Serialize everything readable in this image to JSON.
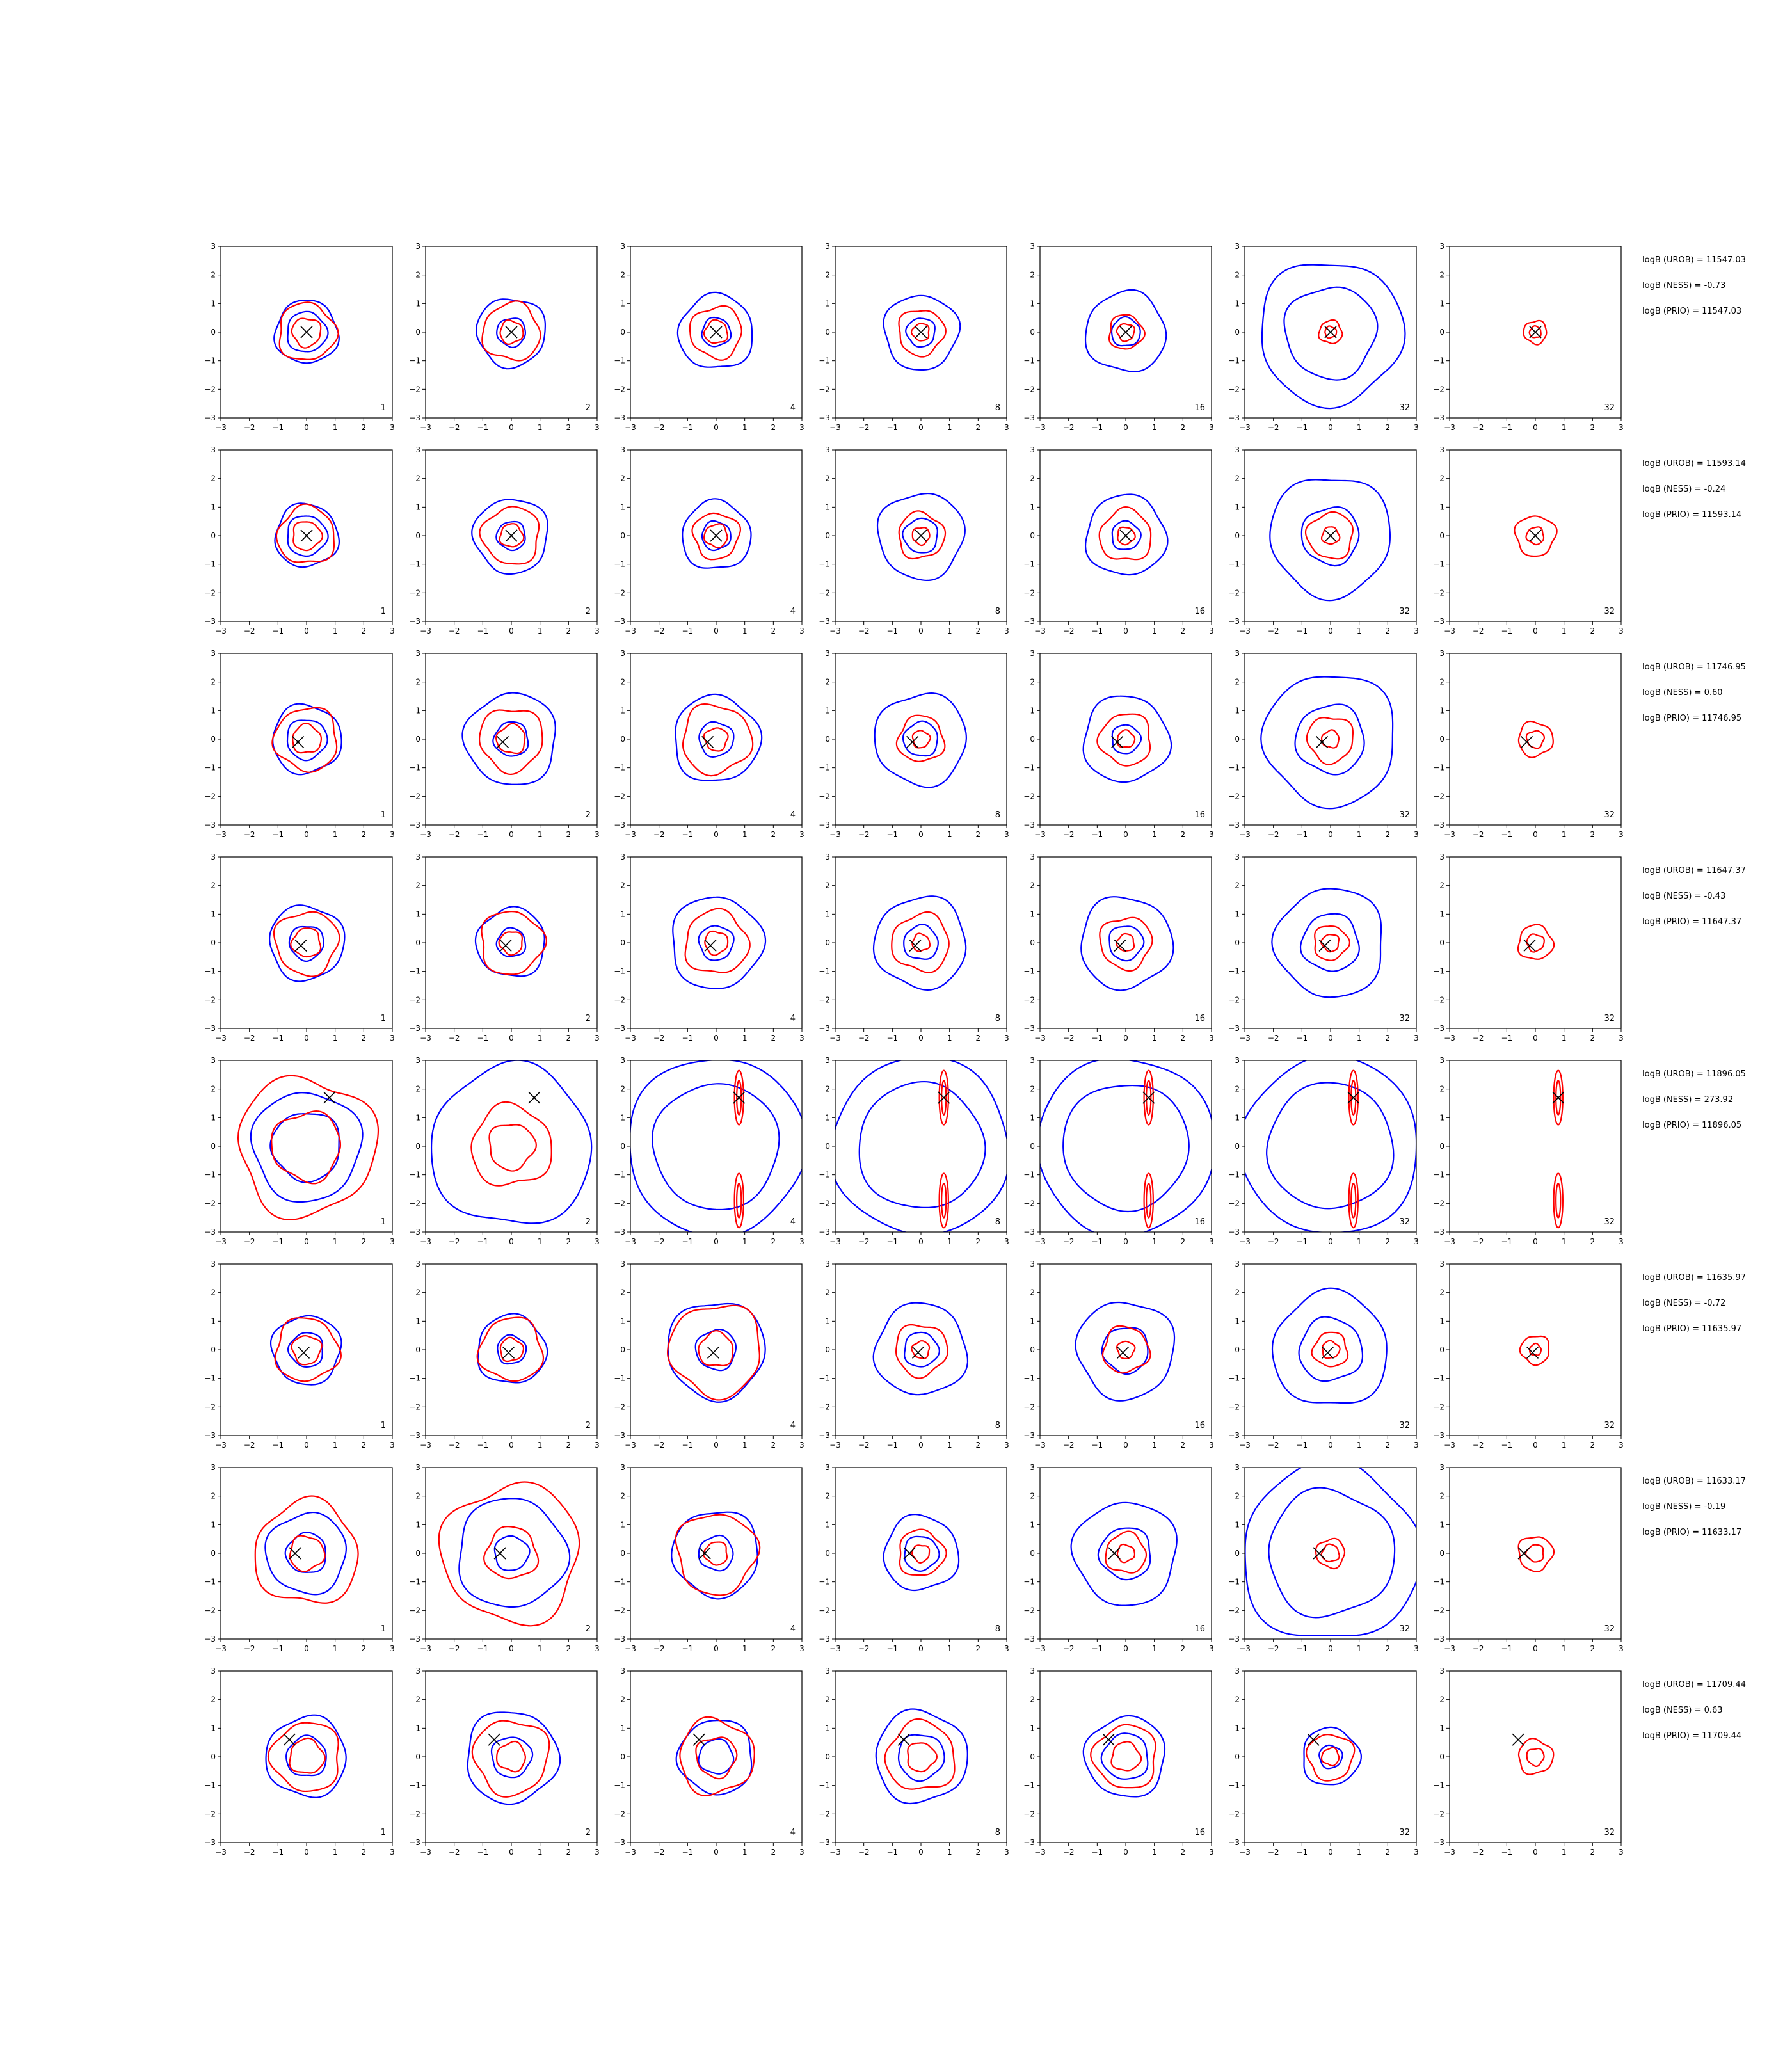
{
  "chart_data": {
    "type": "contour-grid",
    "title": "",
    "xlim": [
      -3,
      3
    ],
    "ylim": [
      -3,
      3
    ],
    "ticks": [
      "−3",
      "−2",
      "−1",
      "0",
      "1",
      "2",
      "3"
    ],
    "grid": false,
    "series_colors": {
      "outer": "#0000ff",
      "inner": "#ff0000",
      "marker": "#000000"
    },
    "columns": [
      {
        "label": "1"
      },
      {
        "label": "2"
      },
      {
        "label": "4"
      },
      {
        "label": "8"
      },
      {
        "label": "16"
      },
      {
        "label": "32"
      },
      {
        "label": "32"
      }
    ],
    "rows": [
      {
        "truth": [
          0,
          0
        ],
        "annotations": [
          "logB (UROB) = 11547.03",
          "logB (NESS) = -0.73",
          "logB (PRIO) = 11547.03"
        ],
        "panels": [
          {
            "blue": [
              1.1,
              0.7
            ],
            "red": [
              1.0,
              0.5
            ]
          },
          {
            "blue": [
              1.2,
              0.5
            ],
            "red": [
              1.0,
              0.4
            ]
          },
          {
            "blue": [
              1.3,
              0.5
            ],
            "red": [
              0.9,
              0.4
            ]
          },
          {
            "blue": [
              1.3,
              0.5
            ],
            "red": [
              0.8,
              0.3
            ]
          },
          {
            "blue": [
              1.4,
              0.5
            ],
            "red": [
              0.6,
              0.3
            ]
          },
          {
            "blue": [
              2.5,
              1.6
            ],
            "red": [
              0.4,
              0.2
            ]
          },
          {
            "blue": [],
            "red": [
              0.4,
              0.2
            ]
          }
        ]
      },
      {
        "truth": [
          0,
          0
        ],
        "annotations": [
          "logB (UROB) = 11593.14",
          "logB (NESS) = -0.24",
          "logB (PRIO) = 11593.14"
        ],
        "panels": [
          {
            "blue": [
              1.1,
              0.7
            ],
            "red": [
              1.0,
              0.5
            ]
          },
          {
            "blue": [
              1.3,
              0.5
            ],
            "red": [
              1.0,
              0.4
            ]
          },
          {
            "blue": [
              1.2,
              0.5
            ],
            "red": [
              0.8,
              0.4
            ]
          },
          {
            "blue": [
              1.5,
              0.6
            ],
            "red": [
              0.8,
              0.3
            ]
          },
          {
            "blue": [
              1.4,
              0.5
            ],
            "red": [
              0.9,
              0.3
            ]
          },
          {
            "blue": [
              2.1,
              1.0
            ],
            "red": [
              0.8,
              0.3
            ]
          },
          {
            "blue": [],
            "red": [
              0.7,
              0.3
            ]
          }
        ]
      },
      {
        "truth": [
          -0.3,
          -0.1
        ],
        "annotations": [
          "logB (UROB) = 11746.95",
          "logB (NESS) = 0.60",
          "logB (PRIO) = 11746.95"
        ],
        "panels": [
          {
            "blue": [
              1.2,
              0.7
            ],
            "red": [
              1.1,
              0.5
            ]
          },
          {
            "blue": [
              1.6,
              0.6
            ],
            "red": [
              1.1,
              0.5
            ]
          },
          {
            "blue": [
              1.5,
              0.6
            ],
            "red": [
              1.2,
              0.4
            ]
          },
          {
            "blue": [
              1.6,
              0.6
            ],
            "red": [
              0.8,
              0.3
            ]
          },
          {
            "blue": [
              1.5,
              0.5
            ],
            "red": [
              0.9,
              0.3
            ]
          },
          {
            "blue": [
              2.3,
              1.2
            ],
            "red": [
              0.8,
              0.3
            ]
          },
          {
            "blue": [],
            "red": [
              0.6,
              0.3
            ]
          }
        ]
      },
      {
        "truth": [
          -0.2,
          -0.1
        ],
        "annotations": [
          "logB (UROB) = 11647.37",
          "logB (NESS) = -0.43",
          "logB (PRIO) = 11647.37"
        ],
        "panels": [
          {
            "blue": [
              1.3,
              0.6
            ],
            "red": [
              1.1,
              0.5
            ]
          },
          {
            "blue": [
              1.2,
              0.5
            ],
            "red": [
              1.1,
              0.4
            ]
          },
          {
            "blue": [
              1.6,
              0.6
            ],
            "red": [
              1.1,
              0.4
            ]
          },
          {
            "blue": [
              1.6,
              0.6
            ],
            "red": [
              1.0,
              0.3
            ]
          },
          {
            "blue": [
              1.6,
              0.6
            ],
            "red": [
              0.9,
              0.3
            ]
          },
          {
            "blue": [
              1.9,
              1.0
            ],
            "red": [
              0.6,
              0.3
            ]
          },
          {
            "blue": [],
            "red": [
              0.6,
              0.3
            ]
          }
        ]
      },
      {
        "truth": [
          0.8,
          1.7
        ],
        "annotations": [
          "logB (UROB) = 11896.05",
          "logB (NESS) = 273.92",
          "logB (PRIO) = 11896.05"
        ],
        "panels": [
          {
            "blue": [
              1.9,
              1.2
            ],
            "red": [
              2.4,
              1.2
            ]
          },
          {
            "blue": [
              2.8
            ],
            "red": [
              1.4,
              0.8
            ]
          },
          {
            "blue": [
              3.1,
              2.2
            ],
            "red": [
              0.3,
              0.2
            ]
          },
          {
            "blue": [
              3.1,
              2.2
            ],
            "red": [
              0.3,
              0.2
            ]
          },
          {
            "blue": [
              3.1,
              2.2
            ],
            "red": [
              0.3,
              0.2
            ]
          },
          {
            "blue": [
              3.1,
              2.2
            ],
            "red": [
              0.3,
              0.2
            ]
          },
          {
            "blue": [],
            "red": [
              0.3,
              0.2
            ]
          }
        ]
      },
      {
        "truth": [
          -0.1,
          -0.1
        ],
        "annotations": [
          "logB (UROB) = 11635.97",
          "logB (NESS) = -0.72",
          "logB (PRIO) = 11635.97"
        ],
        "panels": [
          {
            "blue": [
              1.2,
              0.6
            ],
            "red": [
              1.1,
              0.5
            ]
          },
          {
            "blue": [
              1.2,
              0.5
            ],
            "red": [
              1.1,
              0.4
            ]
          },
          {
            "blue": [
              1.7,
              0.7
            ],
            "red": [
              1.6,
              0.6
            ]
          },
          {
            "blue": [
              1.6,
              0.6
            ],
            "red": [
              0.9,
              0.3
            ]
          },
          {
            "blue": [
              1.7,
              0.8
            ],
            "red": [
              0.8,
              0.3
            ]
          },
          {
            "blue": [
              2.0,
              1.1
            ],
            "red": [
              0.6,
              0.3
            ]
          },
          {
            "blue": [],
            "red": [
              0.5,
              0.2
            ]
          }
        ]
      },
      {
        "truth": [
          -0.4,
          0.0
        ],
        "annotations": [
          "logB (UROB) = 11633.17",
          "logB (NESS) = -0.19",
          "logB (PRIO) = 11633.17"
        ],
        "panels": [
          {
            "blue": [
              1.4,
              0.7
            ],
            "red": [
              1.8,
              0.6
            ]
          },
          {
            "blue": [
              1.9,
              0.6
            ],
            "red": [
              2.4,
              0.9
            ]
          },
          {
            "blue": [
              1.5,
              0.6
            ],
            "red": [
              1.4,
              0.4
            ]
          },
          {
            "blue": [
              1.3,
              0.6
            ],
            "red": [
              0.8,
              0.3
            ]
          },
          {
            "blue": [
              1.8,
              0.9
            ],
            "red": [
              0.7,
              0.3
            ]
          },
          {
            "blue": [
              3.1,
              2.2
            ],
            "red": [
              0.5,
              0.3
            ]
          },
          {
            "blue": [],
            "red": [
              0.6,
              0.3
            ]
          }
        ]
      },
      {
        "truth": [
          -0.6,
          0.6
        ],
        "annotations": [
          "logB (UROB) = 11709.44",
          "logB (NESS) = 0.63",
          "logB (PRIO) = 11709.44"
        ],
        "panels": [
          {
            "blue": [
              1.4,
              0.7
            ],
            "red": [
              1.2,
              0.6
            ]
          },
          {
            "blue": [
              1.6,
              0.7
            ],
            "red": [
              1.3,
              0.5
            ]
          },
          {
            "blue": [
              1.3,
              0.6
            ],
            "red": [
              1.3,
              0.7
            ]
          },
          {
            "blue": [
              1.6,
              0.8
            ],
            "red": [
              1.2,
              0.5
            ]
          },
          {
            "blue": [
              1.4,
              0.8
            ],
            "red": [
              1.1,
              0.5
            ]
          },
          {
            "blue": [
              1.0,
              0.4
            ],
            "red": [
              0.8,
              0.3
            ]
          },
          {
            "blue": [],
            "red": [
              0.6,
              0.3
            ]
          }
        ]
      }
    ]
  }
}
